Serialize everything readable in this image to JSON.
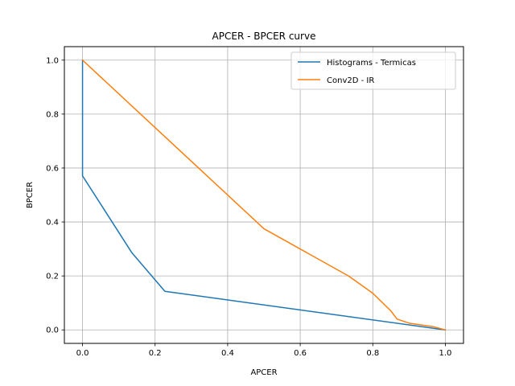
{
  "chart_data": {
    "type": "line",
    "title": "APCER - BPCER curve",
    "xlabel": "APCER",
    "ylabel": "BPCER",
    "xlim": [
      -0.05,
      1.05
    ],
    "ylim": [
      -0.05,
      1.05
    ],
    "xticks": [
      0.0,
      0.2,
      0.4,
      0.6,
      0.8,
      1.0
    ],
    "yticks": [
      0.0,
      0.2,
      0.4,
      0.6,
      0.8,
      1.0
    ],
    "xtick_labels": [
      "0.0",
      "0.2",
      "0.4",
      "0.6",
      "0.8",
      "1.0"
    ],
    "ytick_labels": [
      "0.0",
      "0.2",
      "0.4",
      "0.6",
      "0.8",
      "1.0"
    ],
    "grid": true,
    "legend": "top-right",
    "series": [
      {
        "name": "Histograms - Termicas",
        "color": "#1f77b4",
        "x": [
          0.0,
          0.0,
          0.0,
          0.136,
          0.227,
          1.0
        ],
        "y": [
          1.0,
          0.714,
          0.571,
          0.286,
          0.143,
          0.0
        ]
      },
      {
        "name": "Conv2D - IR",
        "color": "#ff7f0e",
        "x": [
          0.0,
          0.5,
          0.733,
          0.8,
          0.85,
          0.867,
          0.9,
          0.967,
          1.0
        ],
        "y": [
          1.0,
          0.375,
          0.2,
          0.136,
          0.07,
          0.04,
          0.025,
          0.012,
          0.0
        ]
      }
    ]
  }
}
